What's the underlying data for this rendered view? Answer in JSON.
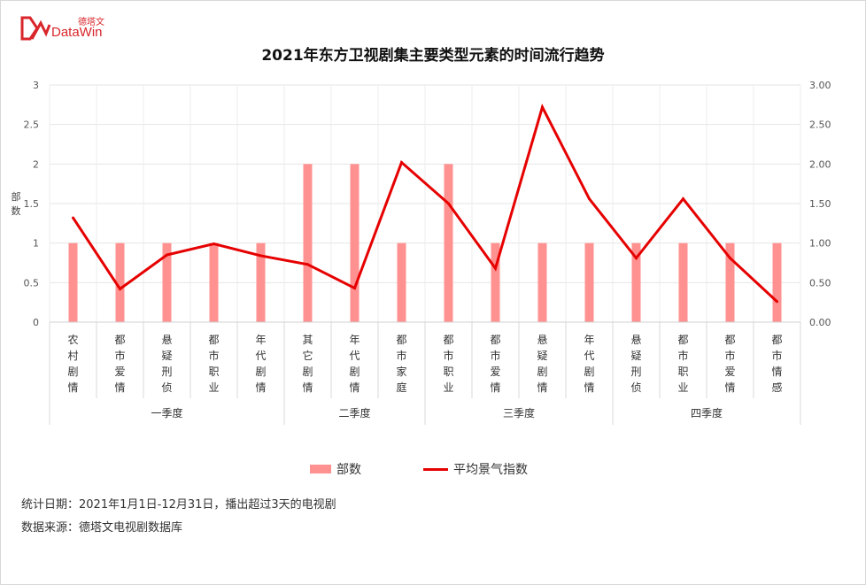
{
  "logo": {
    "cn": "德塔文",
    "en": "DataWin"
  },
  "title": "2021年东方卫视剧集主要类型元素的时间流行趋势",
  "chart_data": {
    "type": "bar",
    "title": "2021年东方卫视剧集主要类型元素的时间流行趋势",
    "categories": [
      "农村剧情",
      "都市爱情",
      "悬疑刑侦",
      "都市职业",
      "年代剧情",
      "其它剧情",
      "年代剧情",
      "都市家庭",
      "都市职业",
      "都市爱情",
      "悬疑剧情",
      "年代剧情",
      "悬疑刑侦",
      "都市职业",
      "都市爱情",
      "都市情感"
    ],
    "groups": [
      {
        "label": "一季度",
        "count": 5
      },
      {
        "label": "二季度",
        "count": 3
      },
      {
        "label": "三季度",
        "count": 4
      },
      {
        "label": "四季度",
        "count": 4
      }
    ],
    "series": [
      {
        "name": "部数",
        "type": "bar",
        "axis": "left",
        "color": "#ff9190",
        "values": [
          1,
          1,
          1,
          1,
          1,
          2,
          2,
          1,
          2,
          1,
          1,
          1,
          1,
          1,
          1,
          1
        ]
      },
      {
        "name": "平均景气指数",
        "type": "line",
        "axis": "right",
        "color": "#e60000",
        "values": [
          1.32,
          0.42,
          0.85,
          0.99,
          0.84,
          0.73,
          0.43,
          2.02,
          1.5,
          0.68,
          2.72,
          1.56,
          0.81,
          1.56,
          0.81,
          0.26
        ]
      }
    ],
    "ylabel": "部数",
    "ylim": [
      0,
      3
    ],
    "y_ticks": [
      "0",
      "0.5",
      "1",
      "1.5",
      "2",
      "2.5",
      "3"
    ],
    "y2lim": [
      0,
      3
    ],
    "y2_ticks": [
      "0.00",
      "0.50",
      "1.00",
      "1.50",
      "2.00",
      "2.50",
      "3.00"
    ],
    "grid": true,
    "legend_position": "bottom"
  },
  "footnotes": [
    "统计日期：2021年1月1日-12月31日，播出超过3天的电视剧",
    "数据来源：德塔文电视剧数据库"
  ]
}
